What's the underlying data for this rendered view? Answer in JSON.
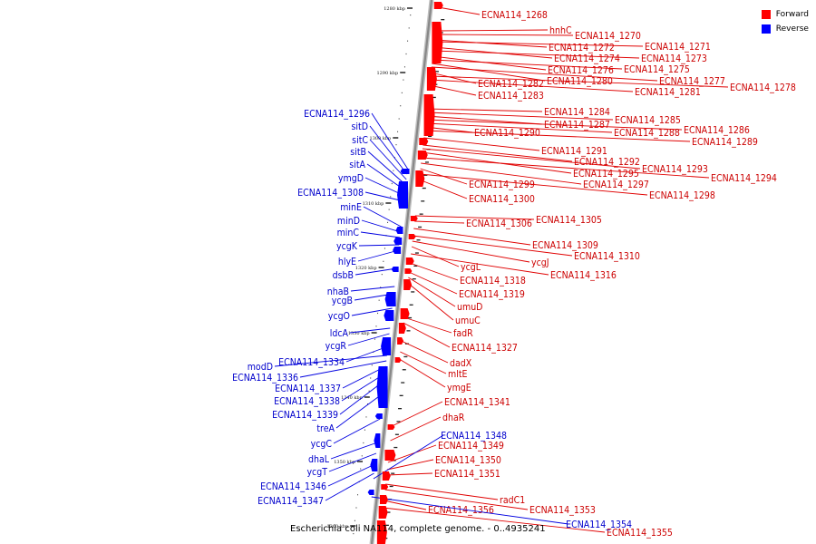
{
  "caption": "Escherichia coli NA114, complete genome. - 0..4935241",
  "legend": {
    "forward": {
      "label": "Forward",
      "color": "#ff0000"
    },
    "reverse": {
      "label": "Reverse",
      "color": "#0000ff"
    }
  },
  "colors": {
    "forward_text": "#cc0000",
    "reverse_text": "#0000cc",
    "backbone": "#888888"
  },
  "ticks": [
    "1280 kbp",
    "1290 kbp",
    "1300 kbp",
    "1310 kbp",
    "1320 kbp",
    "1330 kbp",
    "1340 kbp",
    "1350 kbp",
    "1360 kbp"
  ],
  "forward_genes": [
    "ECNA114_1268",
    "hnhC",
    "ECNA114_1270",
    "ECNA114_1272",
    "ECNA114_1271",
    "ECNA114_1274",
    "ECNA114_1273",
    "ECNA114_1276",
    "ECNA114_1275",
    "ECNA114_1280",
    "ECNA114_1277",
    "ECNA114_1282",
    "ECNA114_1278",
    "ECNA114_1281",
    "ECNA114_1283",
    "ECNA114_1284",
    "ECNA114_1285",
    "ECNA114_1287",
    "ECNA114_1286",
    "ECNA114_1288",
    "ECNA114_1290",
    "ECNA114_1289",
    "ECNA114_1291",
    "ECNA114_1292",
    "ECNA114_1293",
    "ECNA114_1295",
    "ECNA114_1294",
    "ECNA114_1297",
    "ECNA114_1299",
    "ECNA114_1298",
    "ECNA114_1300",
    "ECNA114_1305",
    "ECNA114_1306",
    "ECNA114_1309",
    "ECNA114_1310",
    "ycgJ",
    "ycgL",
    "ECNA114_1316",
    "ECNA114_1318",
    "ECNA114_1319",
    "umuD",
    "umuC",
    "fadR",
    "ECNA114_1327",
    "dadX",
    "mltE",
    "ymgE",
    "ECNA114_1341",
    "dhaR",
    "ECNA114_1349",
    "ECNA114_1350",
    "ECNA114_1351",
    "radC1",
    "ECNA114_1353",
    "ECNA114_1356",
    "ECNA114_1355"
  ],
  "reverse_genes": [
    "ECNA114_1296",
    "sitD",
    "sitC",
    "sitB",
    "sitA",
    "ymgD",
    "ECNA114_1308",
    "minE",
    "minD",
    "minC",
    "ycgK",
    "hlyE",
    "dsbB",
    "nhaB",
    "ycgB",
    "ycgO",
    "ldcA",
    "ycgR",
    "ECNA114_1334",
    "modD",
    "ECNA114_1336",
    "ECNA114_1337",
    "ECNA114_1338",
    "ECNA114_1339",
    "treA",
    "ycgC",
    "dhaL",
    "ycgT",
    "ECNA114_1346",
    "ECNA114_1347",
    "ECNA114_1348",
    "ECNA114_1354"
  ]
}
